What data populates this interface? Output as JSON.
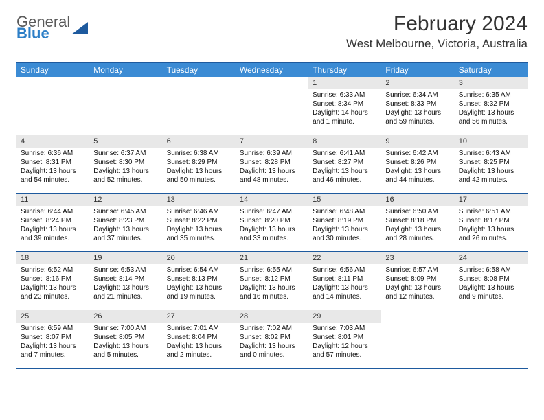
{
  "logo": {
    "line1": "General",
    "line2": "Blue"
  },
  "title": "February 2024",
  "location": "West Melbourne, Victoria, Australia",
  "colors": {
    "header_bg": "#3b8bd4",
    "border": "#1e5a9e",
    "daynum_bg": "#e8e8e8",
    "text": "#000000"
  },
  "day_names": [
    "Sunday",
    "Monday",
    "Tuesday",
    "Wednesday",
    "Thursday",
    "Friday",
    "Saturday"
  ],
  "first_weekday": 4,
  "days": [
    {
      "n": 1,
      "sr": "6:33 AM",
      "ss": "8:34 PM",
      "dl": "14 hours and 1 minute."
    },
    {
      "n": 2,
      "sr": "6:34 AM",
      "ss": "8:33 PM",
      "dl": "13 hours and 59 minutes."
    },
    {
      "n": 3,
      "sr": "6:35 AM",
      "ss": "8:32 PM",
      "dl": "13 hours and 56 minutes."
    },
    {
      "n": 4,
      "sr": "6:36 AM",
      "ss": "8:31 PM",
      "dl": "13 hours and 54 minutes."
    },
    {
      "n": 5,
      "sr": "6:37 AM",
      "ss": "8:30 PM",
      "dl": "13 hours and 52 minutes."
    },
    {
      "n": 6,
      "sr": "6:38 AM",
      "ss": "8:29 PM",
      "dl": "13 hours and 50 minutes."
    },
    {
      "n": 7,
      "sr": "6:39 AM",
      "ss": "8:28 PM",
      "dl": "13 hours and 48 minutes."
    },
    {
      "n": 8,
      "sr": "6:41 AM",
      "ss": "8:27 PM",
      "dl": "13 hours and 46 minutes."
    },
    {
      "n": 9,
      "sr": "6:42 AM",
      "ss": "8:26 PM",
      "dl": "13 hours and 44 minutes."
    },
    {
      "n": 10,
      "sr": "6:43 AM",
      "ss": "8:25 PM",
      "dl": "13 hours and 42 minutes."
    },
    {
      "n": 11,
      "sr": "6:44 AM",
      "ss": "8:24 PM",
      "dl": "13 hours and 39 minutes."
    },
    {
      "n": 12,
      "sr": "6:45 AM",
      "ss": "8:23 PM",
      "dl": "13 hours and 37 minutes."
    },
    {
      "n": 13,
      "sr": "6:46 AM",
      "ss": "8:22 PM",
      "dl": "13 hours and 35 minutes."
    },
    {
      "n": 14,
      "sr": "6:47 AM",
      "ss": "8:20 PM",
      "dl": "13 hours and 33 minutes."
    },
    {
      "n": 15,
      "sr": "6:48 AM",
      "ss": "8:19 PM",
      "dl": "13 hours and 30 minutes."
    },
    {
      "n": 16,
      "sr": "6:50 AM",
      "ss": "8:18 PM",
      "dl": "13 hours and 28 minutes."
    },
    {
      "n": 17,
      "sr": "6:51 AM",
      "ss": "8:17 PM",
      "dl": "13 hours and 26 minutes."
    },
    {
      "n": 18,
      "sr": "6:52 AM",
      "ss": "8:16 PM",
      "dl": "13 hours and 23 minutes."
    },
    {
      "n": 19,
      "sr": "6:53 AM",
      "ss": "8:14 PM",
      "dl": "13 hours and 21 minutes."
    },
    {
      "n": 20,
      "sr": "6:54 AM",
      "ss": "8:13 PM",
      "dl": "13 hours and 19 minutes."
    },
    {
      "n": 21,
      "sr": "6:55 AM",
      "ss": "8:12 PM",
      "dl": "13 hours and 16 minutes."
    },
    {
      "n": 22,
      "sr": "6:56 AM",
      "ss": "8:11 PM",
      "dl": "13 hours and 14 minutes."
    },
    {
      "n": 23,
      "sr": "6:57 AM",
      "ss": "8:09 PM",
      "dl": "13 hours and 12 minutes."
    },
    {
      "n": 24,
      "sr": "6:58 AM",
      "ss": "8:08 PM",
      "dl": "13 hours and 9 minutes."
    },
    {
      "n": 25,
      "sr": "6:59 AM",
      "ss": "8:07 PM",
      "dl": "13 hours and 7 minutes."
    },
    {
      "n": 26,
      "sr": "7:00 AM",
      "ss": "8:05 PM",
      "dl": "13 hours and 5 minutes."
    },
    {
      "n": 27,
      "sr": "7:01 AM",
      "ss": "8:04 PM",
      "dl": "13 hours and 2 minutes."
    },
    {
      "n": 28,
      "sr": "7:02 AM",
      "ss": "8:02 PM",
      "dl": "13 hours and 0 minutes."
    },
    {
      "n": 29,
      "sr": "7:03 AM",
      "ss": "8:01 PM",
      "dl": "12 hours and 57 minutes."
    }
  ],
  "labels": {
    "sunrise": "Sunrise: ",
    "sunset": "Sunset: ",
    "daylight": "Daylight: "
  }
}
